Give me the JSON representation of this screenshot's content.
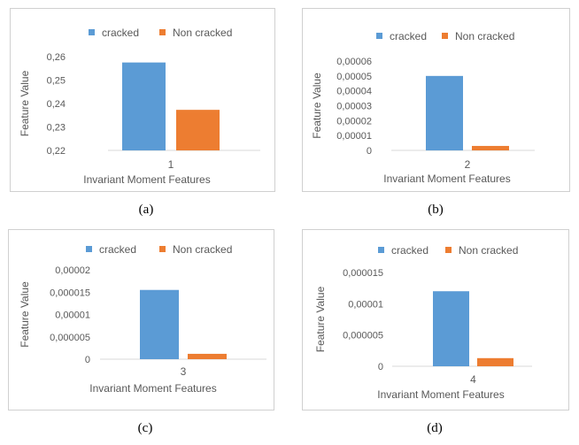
{
  "legend": {
    "series_a": "cracked",
    "series_b": "Non cracked"
  },
  "colors": {
    "cracked": "#5b9bd5",
    "non_cracked": "#ed7d31",
    "axis": "#d9d9d9"
  },
  "chart_data": [
    {
      "type": "bar",
      "caption": "(a)",
      "categories": [
        "1"
      ],
      "series": [
        {
          "name": "cracked",
          "values": [
            0.2575
          ]
        },
        {
          "name": "Non cracked",
          "values": [
            0.2373
          ]
        }
      ],
      "ylabel": "Feature Value",
      "xlabel": "Invariant Moment Features",
      "ylim": [
        0.22,
        0.26
      ],
      "yticks": [
        "0,26",
        "0,25",
        "0,24",
        "0,23",
        "0,22"
      ],
      "legend_position": "top"
    },
    {
      "type": "bar",
      "caption": "(b)",
      "categories": [
        "2"
      ],
      "series": [
        {
          "name": "cracked",
          "values": [
            5e-05
          ]
        },
        {
          "name": "Non cracked",
          "values": [
            3e-06
          ]
        }
      ],
      "ylabel": "Feature Value",
      "xlabel": "Invariant Moment Features",
      "ylim": [
        0,
        6e-05
      ],
      "yticks": [
        "0,00006",
        "0,00005",
        "0,00004",
        "0,00003",
        "0,00002",
        "0,00001",
        "0"
      ],
      "legend_position": "top"
    },
    {
      "type": "bar",
      "caption": "(c)",
      "categories": [
        "3"
      ],
      "series": [
        {
          "name": "cracked",
          "values": [
            1.55e-05
          ]
        },
        {
          "name": "Non cracked",
          "values": [
            1.2e-06
          ]
        }
      ],
      "ylabel": "Feature Value",
      "xlabel": "Invariant Moment Features",
      "ylim": [
        0,
        2e-05
      ],
      "yticks": [
        "0,00002",
        "0,000015",
        "0,00001",
        "0,000005",
        "0"
      ],
      "legend_position": "top"
    },
    {
      "type": "bar",
      "caption": "(d)",
      "categories": [
        "4"
      ],
      "series": [
        {
          "name": "cracked",
          "values": [
            1.2e-05
          ]
        },
        {
          "name": "Non cracked",
          "values": [
            1.3e-06
          ]
        }
      ],
      "ylabel": "Feature Value",
      "xlabel": "Invariant Moment Features",
      "ylim": [
        0,
        1.5e-05
      ],
      "yticks": [
        "0,000015",
        "0,00001",
        "0,000005",
        "0"
      ],
      "legend_position": "top"
    }
  ]
}
